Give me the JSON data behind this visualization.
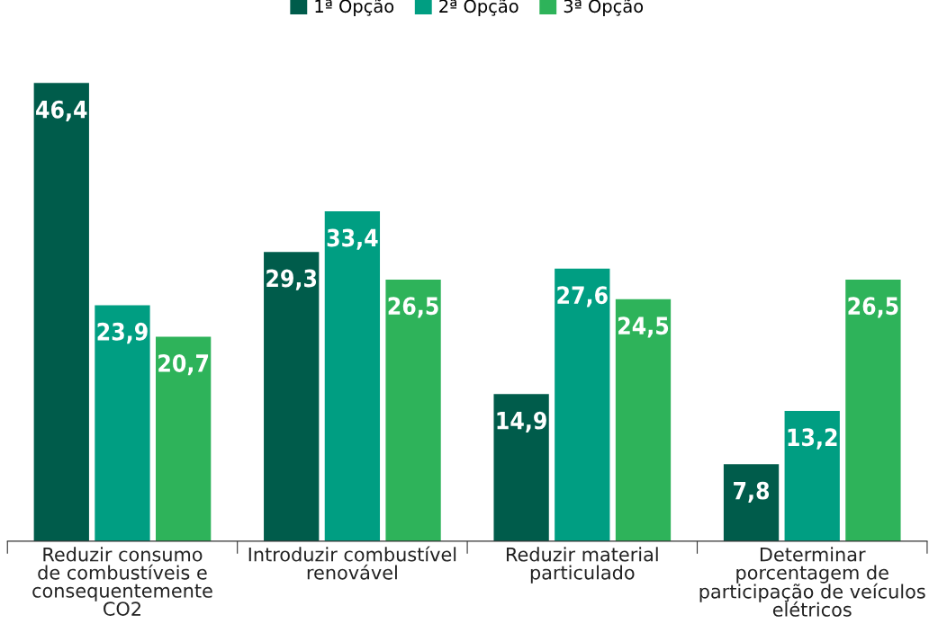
{
  "chart_data": {
    "type": "bar",
    "categories": [
      "Reduzir consumo\nde combustíveis e\nconsequentemente\nCO2",
      "Introduzir combustível\nrenovável",
      "Reduzir material\nparticulado",
      "Determinar\nporcentagem de\nparticipação de veículos\nelétricos"
    ],
    "series": [
      {
        "name": "1ª Opção",
        "color": "#005c4b",
        "values": [
          46.4,
          29.3,
          14.9,
          7.8
        ],
        "value_labels": [
          "46,4",
          "29,3",
          "14,9",
          "7,8"
        ]
      },
      {
        "name": "2ª Opção",
        "color": "#009e82",
        "values": [
          23.9,
          33.4,
          27.6,
          13.2
        ],
        "value_labels": [
          "23,9",
          "33,4",
          "27,6",
          "13,2"
        ]
      },
      {
        "name": "3ª Opção",
        "color": "#2eb35a",
        "values": [
          20.7,
          26.5,
          24.5,
          26.5
        ],
        "value_labels": [
          "20,7",
          "26,5",
          "24,5",
          "26,5"
        ]
      }
    ],
    "legend": "top",
    "grid": false
  }
}
